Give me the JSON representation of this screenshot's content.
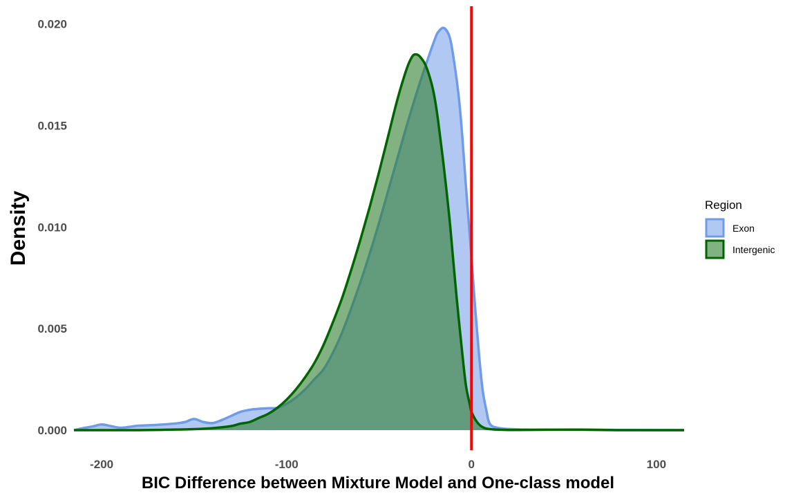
{
  "chart_data": {
    "type": "area",
    "xlabel": "BIC Difference between Mixture Model and One-class model",
    "ylabel": "Density",
    "xlim": [
      -215,
      115
    ],
    "ylim": [
      0,
      0.0207
    ],
    "x_ticks": [
      -200,
      -100,
      0,
      100
    ],
    "x_tick_labels": [
      "-200",
      "-100",
      "0",
      "100"
    ],
    "y_ticks": [
      0,
      0.005,
      0.01,
      0.015,
      0.02
    ],
    "y_tick_labels": [
      "0.000",
      "0.005",
      "0.010",
      "0.015",
      "0.020"
    ],
    "grid": false,
    "legend": {
      "title": "Region",
      "placement": "right"
    },
    "vline": {
      "x": 0,
      "color": "#ff0000"
    },
    "series": [
      {
        "name": "Exon",
        "fill": "#6f9be8",
        "stroke": "#6f9be8",
        "fill_opacity": 0.55,
        "points": [
          [
            -215,
            0
          ],
          [
            -210,
            0.0001
          ],
          [
            -205,
            0.00018
          ],
          [
            -200,
            0.00028
          ],
          [
            -195,
            0.0002
          ],
          [
            -190,
            0.00012
          ],
          [
            -185,
            0.00016
          ],
          [
            -180,
            0.00022
          ],
          [
            -170,
            0.00026
          ],
          [
            -160,
            0.00033
          ],
          [
            -155,
            0.0004
          ],
          [
            -150,
            0.00055
          ],
          [
            -145,
            0.0004
          ],
          [
            -140,
            0.00035
          ],
          [
            -135,
            0.0005
          ],
          [
            -130,
            0.0007
          ],
          [
            -125,
            0.0009
          ],
          [
            -120,
            0.001
          ],
          [
            -115,
            0.00105
          ],
          [
            -110,
            0.00108
          ],
          [
            -105,
            0.0011
          ],
          [
            -100,
            0.0013
          ],
          [
            -95,
            0.0016
          ],
          [
            -90,
            0.002
          ],
          [
            -85,
            0.0025
          ],
          [
            -80,
            0.003
          ],
          [
            -75,
            0.0038
          ],
          [
            -70,
            0.0048
          ],
          [
            -65,
            0.006
          ],
          [
            -60,
            0.0073
          ],
          [
            -55,
            0.0087
          ],
          [
            -50,
            0.0102
          ],
          [
            -45,
            0.0118
          ],
          [
            -40,
            0.0134
          ],
          [
            -35,
            0.015
          ],
          [
            -30,
            0.0165
          ],
          [
            -25,
            0.0179
          ],
          [
            -20,
            0.0192
          ],
          [
            -18,
            0.0196
          ],
          [
            -15,
            0.0198
          ],
          [
            -12,
            0.0194
          ],
          [
            -10,
            0.0185
          ],
          [
            -7,
            0.0165
          ],
          [
            -5,
            0.0145
          ],
          [
            -3,
            0.012
          ],
          [
            0,
            0.0085
          ],
          [
            2,
            0.006
          ],
          [
            4,
            0.0038
          ],
          [
            6,
            0.002
          ],
          [
            8,
            0.001
          ],
          [
            10,
            0.0003
          ],
          [
            15,
            0.0001
          ],
          [
            25,
            4e-05
          ],
          [
            40,
            2e-05
          ],
          [
            60,
            3e-05
          ],
          [
            80,
            1e-05
          ],
          [
            115,
            0
          ]
        ]
      },
      {
        "name": "Intergenic",
        "fill": "#2f7f2f",
        "stroke": "#006400",
        "fill_opacity": 0.6,
        "points": [
          [
            -215,
            0
          ],
          [
            -180,
            0
          ],
          [
            -160,
            3e-05
          ],
          [
            -150,
            5e-05
          ],
          [
            -140,
            0.0001
          ],
          [
            -130,
            0.0002
          ],
          [
            -125,
            0.00032
          ],
          [
            -120,
            0.0004
          ],
          [
            -115,
            0.0006
          ],
          [
            -110,
            0.0008
          ],
          [
            -105,
            0.0011
          ],
          [
            -100,
            0.0015
          ],
          [
            -95,
            0.002
          ],
          [
            -90,
            0.0026
          ],
          [
            -85,
            0.0033
          ],
          [
            -80,
            0.0042
          ],
          [
            -75,
            0.0053
          ],
          [
            -70,
            0.0065
          ],
          [
            -65,
            0.0079
          ],
          [
            -60,
            0.0094
          ],
          [
            -55,
            0.011
          ],
          [
            -50,
            0.0127
          ],
          [
            -45,
            0.0145
          ],
          [
            -40,
            0.0163
          ],
          [
            -35,
            0.0178
          ],
          [
            -32,
            0.0184
          ],
          [
            -30,
            0.0185
          ],
          [
            -28,
            0.0184
          ],
          [
            -25,
            0.018
          ],
          [
            -22,
            0.0172
          ],
          [
            -20,
            0.0164
          ],
          [
            -18,
            0.0152
          ],
          [
            -15,
            0.013
          ],
          [
            -12,
            0.0105
          ],
          [
            -10,
            0.0085
          ],
          [
            -8,
            0.0065
          ],
          [
            -5,
            0.0038
          ],
          [
            -3,
            0.0022
          ],
          [
            -1,
            0.0013
          ],
          [
            0,
            0.0009
          ],
          [
            3,
            0.0004
          ],
          [
            6,
            0.00015
          ],
          [
            10,
            5e-05
          ],
          [
            20,
            1e-05
          ],
          [
            40,
            2e-05
          ],
          [
            60,
            2e-05
          ],
          [
            80,
            0
          ],
          [
            115,
            0
          ]
        ]
      }
    ]
  }
}
